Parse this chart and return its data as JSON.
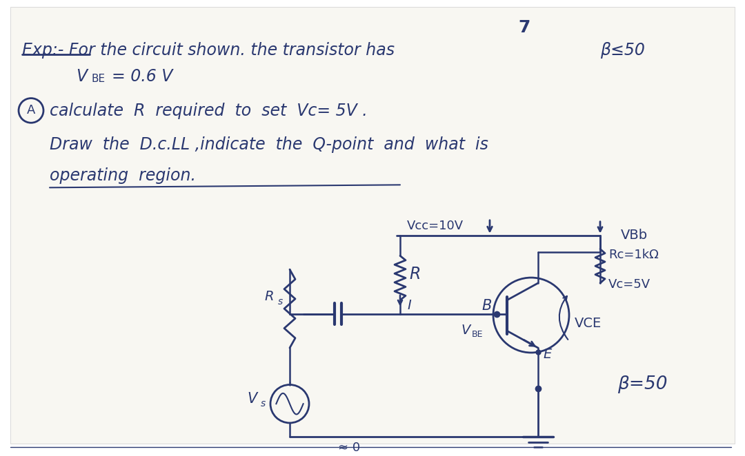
{
  "bg_color": "#ffffff",
  "paper_color": "#f8f7f2",
  "ink_color": "#2a3870",
  "page_number": "7",
  "text_lines": {
    "exp_line": "Exp:- For the circuit shown. the transistor has",
    "beta_part": "β≤50",
    "vbe_line": "V",
    "vbe_sub": "BE",
    "vbe_val": "= 0.6 V",
    "circled_a": "A",
    "calc_line": "calculate  R  required  to  set  Vc= 5V .",
    "draw_line": "Draw  the  D.c.LL ,indicate  the  Q-point  and  what  is",
    "oper_line": "operating  region."
  },
  "circuit": {
    "vcc_label": "Vcc=10V",
    "r_label": "R",
    "i_label": "I",
    "rs_label": "R",
    "rs_sub": "s",
    "vs_label": "V",
    "vs_sub": "s",
    "b_label": "B",
    "vbe_label": "V",
    "vbe_sub": "BE",
    "e_label": "E",
    "rc_label": "Rc=1kΩ",
    "vc_label": "Vc=5V",
    "vce_label": "VCE",
    "vbb_label": "VBb",
    "beta_label": "β=50",
    "gnd_label": "≌ 0"
  },
  "font_size_main": 17,
  "font_size_circ": 13
}
